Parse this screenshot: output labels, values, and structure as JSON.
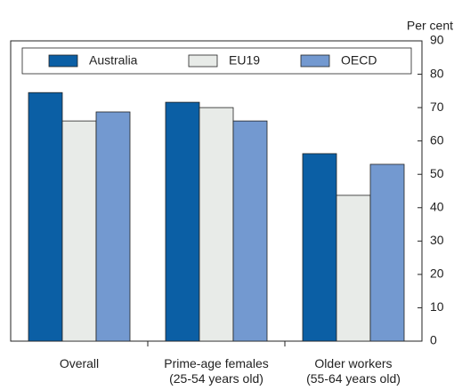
{
  "chart_data": {
    "type": "bar",
    "y_label": "Per cent",
    "categories": [
      "Overall",
      "Prime-age females\n(25-54 years old)",
      "Older workers\n(55-64 years old)"
    ],
    "series": [
      {
        "name": "Australia",
        "color": "#0b5fa5",
        "values": [
          74.5,
          71.6,
          56.2
        ]
      },
      {
        "name": "EU19",
        "color": "#e8ebe8",
        "values": [
          66,
          70,
          43.7
        ]
      },
      {
        "name": "OECD",
        "color": "#7399d0",
        "values": [
          68.7,
          66,
          53
        ]
      }
    ],
    "ylim": [
      0,
      90
    ],
    "yticks": [
      0,
      10,
      20,
      30,
      40,
      50,
      60,
      70,
      80,
      90
    ],
    "grid": false,
    "legend": "top"
  }
}
